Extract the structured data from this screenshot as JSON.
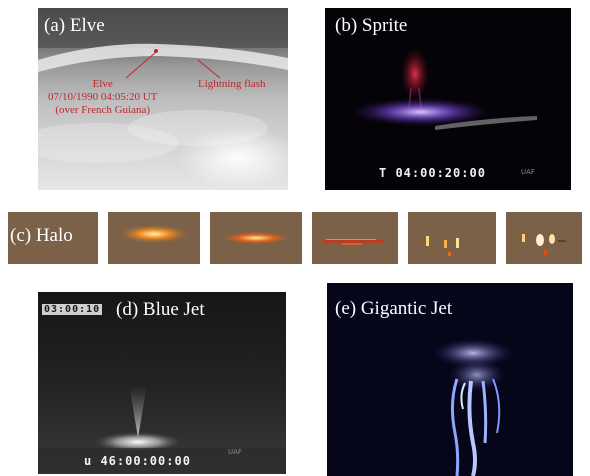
{
  "panels": {
    "elve": {
      "title": "(a) Elve",
      "label_lines": [
        "Elve",
        "07/10/1990 04:05:20 UT",
        "(over French Guiana)"
      ],
      "lightning_label": "Lightning flash"
    },
    "sprite": {
      "title": "(b) Sprite",
      "timestamp": "T 04:00:20:00",
      "source_mark": "UAF"
    },
    "halo": {
      "title": "(c) Halo",
      "frame_count": 5
    },
    "blue_jet": {
      "title": "(d) Blue Jet",
      "top_stamp": "03:00:10",
      "timestamp": "u 46:00:00:00",
      "source_mark": "UAF"
    },
    "gigantic_jet": {
      "title": "(e) Gigantic Jet"
    }
  }
}
